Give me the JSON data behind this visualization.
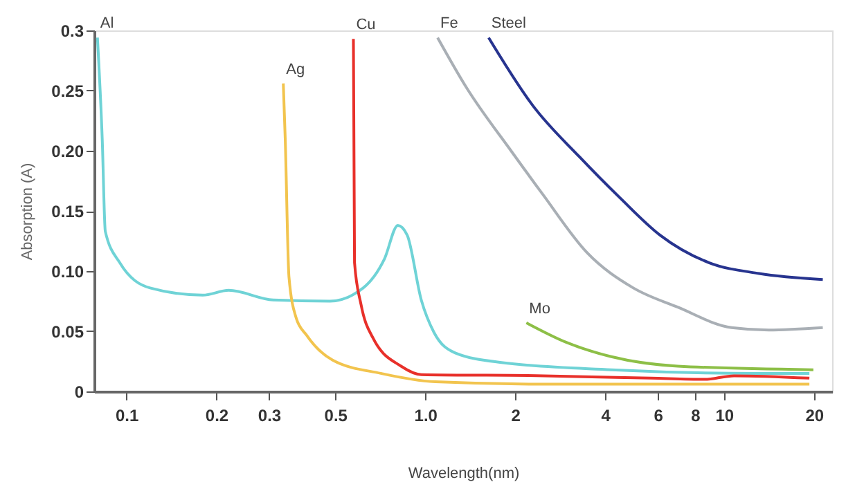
{
  "chart_data": {
    "type": "line",
    "xlabel": "Wavelength(nm)",
    "ylabel": "Absorption (A)",
    "log": "x",
    "grid": false,
    "legend": false,
    "marker": "none",
    "line_style": "solid",
    "xlim": [
      0.078,
      23
    ],
    "ylim": [
      0,
      0.3
    ],
    "xticks": [
      0.1,
      0.2,
      0.3,
      0.5,
      {
        "value": 1,
        "label": "1.0"
      },
      2,
      4,
      6,
      8,
      10,
      20
    ],
    "yticks": [
      {
        "value": 0,
        "label": "0"
      },
      0.05,
      {
        "value": 0.1,
        "label": "0.10"
      },
      0.15,
      {
        "value": 0.2,
        "label": "0.20"
      },
      0.25,
      0.3
    ],
    "series": [
      {
        "name": "Al",
        "color": "#6fd3d6",
        "x": [
          0.08,
          0.083,
          0.085,
          0.095,
          0.12,
          0.18,
          0.22,
          0.31,
          0.48,
          0.62,
          0.73,
          0.81,
          0.87,
          0.97,
          1.07,
          1.26,
          1.8,
          4.2,
          13,
          19.3
        ],
        "values": [
          0.294,
          0.21,
          0.133,
          0.107,
          0.086,
          0.08,
          0.084,
          0.076,
          0.075,
          0.086,
          0.11,
          0.138,
          0.13,
          0.076,
          0.049,
          0.032,
          0.024,
          0.018,
          0.015,
          0.015
        ]
      },
      {
        "name": "Ag",
        "color": "#f2c44e",
        "x": [
          0.335,
          0.34,
          0.35,
          0.37,
          0.4,
          0.49,
          0.71,
          1.08,
          2.5,
          19.3
        ],
        "values": [
          0.256,
          0.21,
          0.095,
          0.061,
          0.047,
          0.026,
          0.015,
          0.008,
          0.006,
          0.006
        ]
      },
      {
        "name": "Cu",
        "color": "#e8302a",
        "x": [
          0.575,
          0.58,
          0.61,
          0.67,
          0.83,
          0.97,
          2.5,
          5.7,
          8.6,
          10.8,
          19.3
        ],
        "values": [
          0.293,
          0.107,
          0.072,
          0.044,
          0.021,
          0.014,
          0.013,
          0.011,
          0.01,
          0.013,
          0.011
        ]
      },
      {
        "name": "Fe",
        "color": "#a9afb5",
        "x": [
          1.1,
          1.37,
          1.95,
          2.47,
          3.49,
          4.97,
          7.0,
          10.6,
          14.1,
          21.4
        ],
        "values": [
          0.294,
          0.253,
          0.199,
          0.164,
          0.115,
          0.086,
          0.07,
          0.053,
          0.051,
          0.053
        ]
      },
      {
        "name": "Steel",
        "color": "#27348f",
        "x": [
          1.63,
          2.3,
          3.28,
          4.48,
          6.1,
          8.9,
          13.1,
          21.4
        ],
        "values": [
          0.294,
          0.237,
          0.195,
          0.161,
          0.13,
          0.107,
          0.098,
          0.093
        ]
      },
      {
        "name": "Mo",
        "color": "#8dbf47",
        "x": [
          2.18,
          2.95,
          4.17,
          7.0,
          19.9
        ],
        "values": [
          0.057,
          0.041,
          0.029,
          0.021,
          0.018
        ]
      }
    ]
  }
}
